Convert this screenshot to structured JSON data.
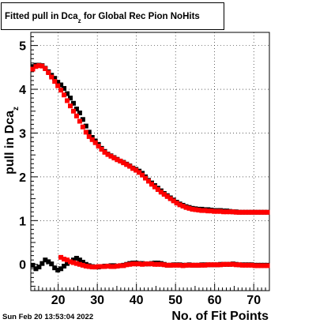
{
  "chart_data": {
    "type": "scatter",
    "title_main": "Fitted pull in Dca",
    "title_sub": "z",
    "title_rest": " for Global Rec Pion NoHits",
    "xlabel": "No. of Fit Points",
    "ylabel_main": "pull in Dca",
    "ylabel_sub": "z",
    "timestamp": "Sun Feb 20 13:53:04 2022",
    "xlim": [
      13,
      74
    ],
    "ylim": [
      -0.6,
      5.3
    ],
    "x_ticks": [
      20,
      30,
      40,
      50,
      60,
      70
    ],
    "y_ticks": [
      0,
      1,
      2,
      3,
      4,
      5
    ],
    "grid": true,
    "colors": {
      "series_black": "#000000",
      "series_red": "#ff0000"
    },
    "series": [
      {
        "key": "black_upper",
        "color": "#000000",
        "points": [
          [
            13.5,
            4.52
          ],
          [
            14.3,
            4.55
          ],
          [
            15.1,
            4.55
          ],
          [
            15.9,
            4.54
          ],
          [
            16.7,
            4.48
          ],
          [
            17.5,
            4.4
          ],
          [
            18.3,
            4.32
          ],
          [
            19.1,
            4.25
          ],
          [
            19.9,
            4.16
          ],
          [
            20.7,
            4.1
          ],
          [
            21.5,
            4.02
          ],
          [
            22.3,
            3.9
          ],
          [
            23.1,
            3.8
          ],
          [
            23.9,
            3.68
          ],
          [
            24.7,
            3.55
          ],
          [
            25.5,
            3.46
          ],
          [
            26.3,
            3.31
          ],
          [
            27.1,
            3.16
          ],
          [
            27.9,
            3.02
          ],
          [
            28.7,
            2.9
          ],
          [
            29.5,
            2.82
          ],
          [
            30.3,
            2.74
          ],
          [
            31.1,
            2.65
          ],
          [
            31.9,
            2.58
          ],
          [
            32.7,
            2.52
          ],
          [
            33.5,
            2.48
          ],
          [
            34.3,
            2.44
          ],
          [
            35.1,
            2.4
          ],
          [
            35.9,
            2.36
          ],
          [
            36.7,
            2.33
          ],
          [
            37.5,
            2.29
          ],
          [
            38.3,
            2.25
          ],
          [
            39.1,
            2.2
          ],
          [
            39.9,
            2.17
          ],
          [
            40.7,
            2.13
          ],
          [
            41.5,
            2.08
          ],
          [
            42.3,
            2.0
          ],
          [
            43.1,
            1.92
          ],
          [
            43.9,
            1.86
          ],
          [
            44.7,
            1.8
          ],
          [
            45.5,
            1.74
          ],
          [
            46.3,
            1.68
          ],
          [
            47.1,
            1.62
          ],
          [
            47.9,
            1.57
          ],
          [
            48.7,
            1.52
          ],
          [
            49.5,
            1.47
          ],
          [
            50.3,
            1.42
          ],
          [
            51.1,
            1.38
          ],
          [
            51.9,
            1.35
          ],
          [
            52.7,
            1.32
          ],
          [
            53.5,
            1.3
          ],
          [
            54.3,
            1.28
          ],
          [
            55.1,
            1.27
          ],
          [
            55.9,
            1.26
          ],
          [
            56.7,
            1.26
          ],
          [
            57.5,
            1.25
          ],
          [
            58.3,
            1.25
          ],
          [
            59.1,
            1.24
          ],
          [
            59.9,
            1.23
          ],
          [
            60.7,
            1.23
          ],
          [
            61.5,
            1.23
          ],
          [
            62.3,
            1.22
          ],
          [
            63.1,
            1.22
          ],
          [
            63.9,
            1.21
          ],
          [
            64.7,
            1.2
          ],
          [
            65.5,
            1.2
          ],
          [
            66.3,
            1.19
          ],
          [
            67.1,
            1.19
          ],
          [
            67.9,
            1.19
          ],
          [
            68.7,
            1.19
          ],
          [
            69.5,
            1.19
          ],
          [
            70.3,
            1.19
          ],
          [
            71.1,
            1.19
          ],
          [
            71.9,
            1.19
          ],
          [
            72.7,
            1.19
          ],
          [
            73.5,
            1.19
          ]
        ]
      },
      {
        "key": "red_upper",
        "color": "#ff0000",
        "points": [
          [
            13.5,
            4.46
          ],
          [
            14.3,
            4.52
          ],
          [
            15.1,
            4.54
          ],
          [
            15.9,
            4.53
          ],
          [
            16.7,
            4.47
          ],
          [
            17.5,
            4.38
          ],
          [
            18.3,
            4.28
          ],
          [
            19.1,
            4.18
          ],
          [
            19.9,
            4.08
          ],
          [
            20.7,
            3.98
          ],
          [
            21.5,
            3.87
          ],
          [
            22.3,
            3.74
          ],
          [
            23.1,
            3.62
          ],
          [
            23.9,
            3.5
          ],
          [
            24.7,
            3.39
          ],
          [
            25.5,
            3.27
          ],
          [
            26.3,
            3.14
          ],
          [
            27.1,
            3.02
          ],
          [
            27.9,
            2.92
          ],
          [
            28.7,
            2.85
          ],
          [
            29.5,
            2.78
          ],
          [
            30.3,
            2.7
          ],
          [
            31.1,
            2.63
          ],
          [
            31.9,
            2.56
          ],
          [
            32.7,
            2.51
          ],
          [
            33.5,
            2.47
          ],
          [
            34.3,
            2.43
          ],
          [
            35.1,
            2.39
          ],
          [
            35.9,
            2.36
          ],
          [
            36.7,
            2.32
          ],
          [
            37.5,
            2.28
          ],
          [
            38.3,
            2.24
          ],
          [
            39.1,
            2.19
          ],
          [
            39.9,
            2.15
          ],
          [
            40.7,
            2.1
          ],
          [
            41.5,
            2.04
          ],
          [
            42.3,
            1.97
          ],
          [
            43.1,
            1.9
          ],
          [
            43.9,
            1.83
          ],
          [
            44.7,
            1.77
          ],
          [
            45.5,
            1.71
          ],
          [
            46.3,
            1.65
          ],
          [
            47.1,
            1.6
          ],
          [
            47.9,
            1.55
          ],
          [
            48.7,
            1.5
          ],
          [
            49.5,
            1.45
          ],
          [
            50.3,
            1.4
          ],
          [
            51.1,
            1.36
          ],
          [
            51.9,
            1.33
          ],
          [
            52.7,
            1.3
          ],
          [
            53.5,
            1.28
          ],
          [
            54.3,
            1.26
          ],
          [
            55.1,
            1.25
          ],
          [
            55.9,
            1.24
          ],
          [
            56.7,
            1.23
          ],
          [
            57.5,
            1.23
          ],
          [
            58.3,
            1.22
          ],
          [
            59.1,
            1.22
          ],
          [
            59.9,
            1.21
          ],
          [
            60.7,
            1.21
          ],
          [
            61.5,
            1.21
          ],
          [
            62.3,
            1.2
          ],
          [
            63.1,
            1.2
          ],
          [
            63.9,
            1.2
          ],
          [
            64.7,
            1.2
          ],
          [
            65.5,
            1.19
          ],
          [
            66.3,
            1.19
          ],
          [
            67.1,
            1.19
          ],
          [
            67.9,
            1.19
          ],
          [
            68.7,
            1.19
          ],
          [
            69.5,
            1.19
          ],
          [
            70.3,
            1.19
          ],
          [
            71.1,
            1.19
          ],
          [
            71.9,
            1.19
          ],
          [
            72.7,
            1.19
          ],
          [
            73.5,
            1.19
          ]
        ]
      },
      {
        "key": "black_lower",
        "color": "#000000",
        "points": [
          [
            13.5,
            -0.02
          ],
          [
            14.3,
            -0.1
          ],
          [
            15.1,
            -0.06
          ],
          [
            15.9,
            0.02
          ],
          [
            16.7,
            0.1
          ],
          [
            17.5,
            0.06
          ],
          [
            18.3,
            0.01
          ],
          [
            19.1,
            -0.08
          ],
          [
            19.9,
            -0.13
          ],
          [
            20.7,
            -0.1
          ],
          [
            21.5,
            -0.04
          ],
          [
            22.3,
            0.02
          ],
          [
            23.1,
            0.06
          ],
          [
            23.9,
            0.1
          ],
          [
            24.7,
            0.14
          ],
          [
            25.5,
            0.1
          ],
          [
            26.3,
            0.05
          ],
          [
            27.1,
            0.0
          ],
          [
            27.9,
            -0.03
          ],
          [
            28.7,
            -0.05
          ],
          [
            29.5,
            -0.06
          ],
          [
            30.3,
            -0.06
          ],
          [
            31.1,
            -0.05
          ],
          [
            31.9,
            -0.04
          ],
          [
            32.7,
            -0.04
          ],
          [
            33.5,
            -0.03
          ],
          [
            34.3,
            -0.03
          ],
          [
            35.1,
            -0.04
          ],
          [
            35.9,
            -0.03
          ],
          [
            36.7,
            -0.02
          ],
          [
            37.5,
            0.0
          ],
          [
            38.3,
            0.02
          ],
          [
            39.1,
            0.03
          ],
          [
            39.9,
            0.03
          ],
          [
            40.7,
            0.02
          ],
          [
            41.5,
            0.02
          ],
          [
            42.3,
            0.01
          ],
          [
            43.1,
            0.01
          ],
          [
            43.9,
            0.02
          ],
          [
            44.7,
            0.03
          ],
          [
            45.5,
            0.03
          ],
          [
            46.3,
            0.02
          ],
          [
            47.1,
            0.0
          ],
          [
            47.9,
            -0.02
          ],
          [
            48.7,
            -0.02
          ],
          [
            49.5,
            -0.01
          ],
          [
            50.3,
            -0.01
          ],
          [
            51.1,
            -0.01
          ],
          [
            51.9,
            -0.02
          ],
          [
            52.7,
            -0.02
          ],
          [
            53.5,
            -0.01
          ],
          [
            54.3,
            -0.02
          ],
          [
            55.1,
            -0.02
          ],
          [
            55.9,
            -0.02
          ],
          [
            56.7,
            -0.01
          ],
          [
            57.5,
            -0.01
          ],
          [
            58.3,
            -0.01
          ],
          [
            59.1,
            -0.01
          ],
          [
            59.9,
            -0.01
          ],
          [
            60.7,
            -0.01
          ],
          [
            61.5,
            0.0
          ],
          [
            62.3,
            0.0
          ],
          [
            63.1,
            0.0
          ],
          [
            63.9,
            0.0
          ],
          [
            64.7,
            0.01
          ],
          [
            65.5,
            0.0
          ],
          [
            66.3,
            -0.01
          ],
          [
            67.1,
            -0.01
          ],
          [
            67.9,
            -0.01
          ],
          [
            68.7,
            -0.01
          ],
          [
            69.5,
            -0.01
          ],
          [
            70.3,
            -0.02
          ],
          [
            71.1,
            -0.02
          ],
          [
            71.9,
            -0.02
          ],
          [
            72.7,
            -0.02
          ],
          [
            73.5,
            -0.02
          ]
        ]
      },
      {
        "key": "red_lower",
        "color": "#ff0000",
        "points": [
          [
            20.7,
            0.16
          ],
          [
            21.5,
            0.12
          ],
          [
            22.3,
            0.1
          ],
          [
            23.1,
            0.06
          ],
          [
            23.9,
            0.04
          ],
          [
            24.7,
            0.02
          ],
          [
            25.5,
            0.0
          ],
          [
            26.3,
            -0.02
          ],
          [
            27.1,
            -0.04
          ],
          [
            27.9,
            -0.05
          ],
          [
            28.7,
            -0.06
          ],
          [
            29.5,
            -0.06
          ],
          [
            30.3,
            -0.05
          ],
          [
            31.1,
            -0.05
          ],
          [
            31.9,
            -0.05
          ],
          [
            32.7,
            -0.04
          ],
          [
            33.5,
            -0.05
          ],
          [
            34.3,
            -0.05
          ],
          [
            35.1,
            -0.04
          ],
          [
            35.9,
            -0.03
          ],
          [
            36.7,
            -0.03
          ],
          [
            37.5,
            -0.01
          ],
          [
            38.3,
            0.0
          ],
          [
            39.1,
            0.01
          ],
          [
            39.9,
            0.01
          ],
          [
            40.7,
            0.01
          ],
          [
            41.5,
            0.0
          ],
          [
            42.3,
            0.01
          ],
          [
            43.1,
            0.01
          ],
          [
            43.9,
            0.01
          ],
          [
            44.7,
            0.0
          ],
          [
            45.5,
            0.0
          ],
          [
            46.3,
            0.0
          ],
          [
            47.1,
            -0.01
          ],
          [
            47.9,
            -0.02
          ],
          [
            48.7,
            -0.02
          ],
          [
            49.5,
            -0.02
          ],
          [
            50.3,
            -0.02
          ],
          [
            51.1,
            -0.02
          ],
          [
            51.9,
            -0.03
          ],
          [
            52.7,
            -0.02
          ],
          [
            53.5,
            -0.02
          ],
          [
            54.3,
            -0.02
          ],
          [
            55.1,
            -0.02
          ],
          [
            55.9,
            -0.02
          ],
          [
            56.7,
            -0.02
          ],
          [
            57.5,
            -0.02
          ],
          [
            58.3,
            -0.01
          ],
          [
            59.1,
            -0.01
          ],
          [
            59.9,
            -0.01
          ],
          [
            60.7,
            -0.01
          ],
          [
            61.5,
            -0.01
          ],
          [
            62.3,
            0.0
          ],
          [
            63.1,
            0.0
          ],
          [
            63.9,
            0.0
          ],
          [
            64.7,
            0.0
          ],
          [
            65.5,
            -0.01
          ],
          [
            66.3,
            -0.01
          ],
          [
            67.1,
            -0.02
          ],
          [
            67.9,
            -0.02
          ],
          [
            68.7,
            -0.02
          ],
          [
            69.5,
            -0.02
          ],
          [
            70.3,
            -0.03
          ],
          [
            71.1,
            -0.03
          ],
          [
            71.9,
            -0.03
          ],
          [
            72.7,
            -0.03
          ],
          [
            73.5,
            -0.03
          ]
        ]
      }
    ]
  }
}
